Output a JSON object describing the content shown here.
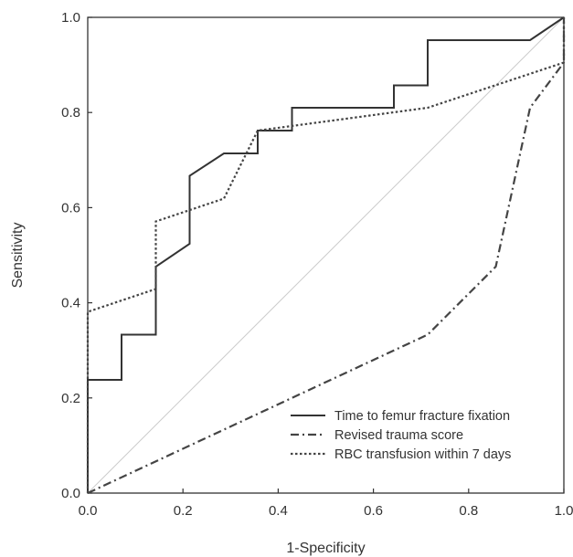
{
  "chart_data": {
    "type": "line",
    "xlabel": "1-Specificity",
    "ylabel": "Sensitivity",
    "xlim": [
      0,
      1
    ],
    "ylim": [
      0,
      1
    ],
    "x_ticks": [
      "0.0",
      "0.2",
      "0.4",
      "0.6",
      "0.8",
      "1.0"
    ],
    "y_ticks": [
      "0.0",
      "0.2",
      "0.4",
      "0.6",
      "0.8",
      "1.0"
    ],
    "grid": false,
    "legend_position": "bottom-right",
    "reference_line": {
      "x": [
        0,
        1
      ],
      "y": [
        0,
        1
      ],
      "color": "#cccccc"
    },
    "series": [
      {
        "name": "Time to femur fracture fixation",
        "style": "solid",
        "color": "#333333",
        "x": [
          0,
          0,
          0.071,
          0.071,
          0.143,
          0.143,
          0.214,
          0.214,
          0.286,
          0.357,
          0.357,
          0.429,
          0.429,
          0.643,
          0.643,
          0.714,
          0.714,
          0.929,
          1.0
        ],
        "y": [
          0,
          0.238,
          0.238,
          0.333,
          0.333,
          0.476,
          0.524,
          0.667,
          0.714,
          0.714,
          0.762,
          0.762,
          0.81,
          0.81,
          0.857,
          0.857,
          0.952,
          0.952,
          1.0
        ]
      },
      {
        "name": "Revised trauma score",
        "style": "dashdot",
        "color": "#444444",
        "x": [
          0,
          0.714,
          0.857,
          0.929,
          1.0,
          1.0
        ],
        "y": [
          0,
          0.333,
          0.476,
          0.81,
          0.905,
          1.0
        ]
      },
      {
        "name": "RBC transfusion within 7 days",
        "style": "dotted",
        "color": "#444444",
        "x": [
          0,
          0,
          0.143,
          0.143,
          0.286,
          0.357,
          0.714,
          1.0,
          1.0
        ],
        "y": [
          0,
          0.381,
          0.429,
          0.571,
          0.619,
          0.762,
          0.81,
          0.905,
          1.0
        ]
      }
    ]
  }
}
